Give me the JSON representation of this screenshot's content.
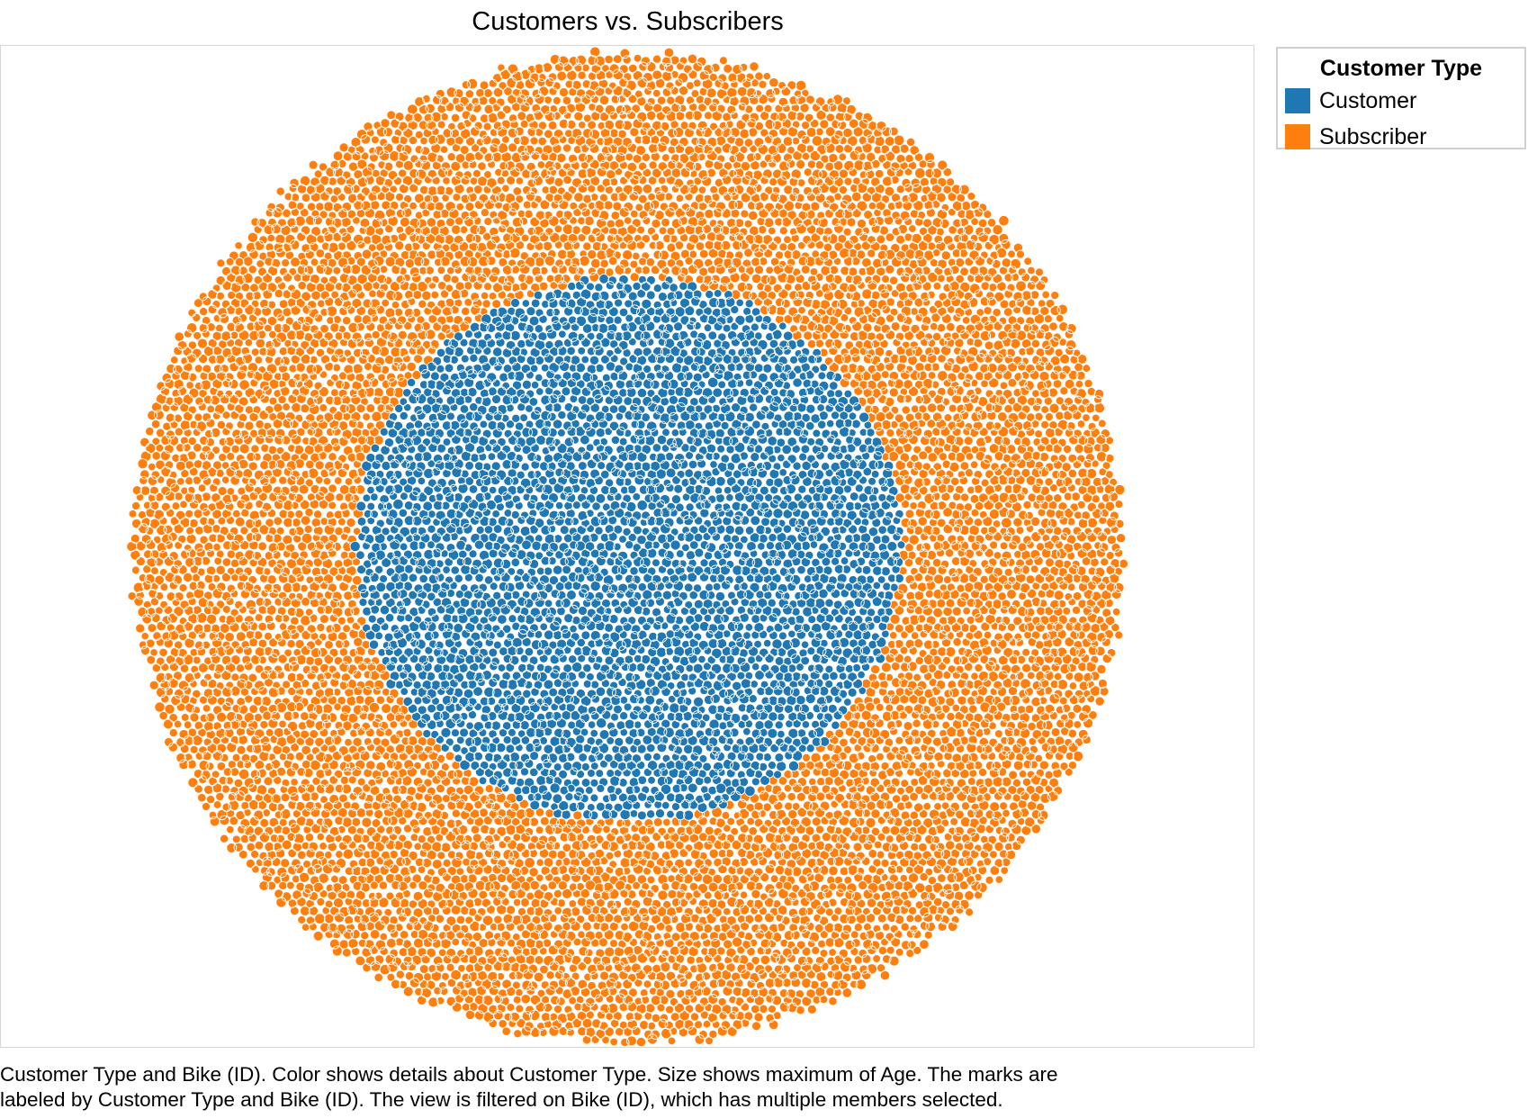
{
  "chart_data": {
    "type": "scatter",
    "layout": "packed-bubbles",
    "title": "Customers vs. Subscribers",
    "xlabel": "",
    "ylabel": "",
    "grid": false,
    "legend": {
      "title": "Customer Type",
      "placement": "right-top"
    },
    "series": [
      {
        "name": "Customer",
        "color": "#1f77b4",
        "region": "inner-disc"
      },
      {
        "name": "Subscriber",
        "color": "#ff7f0e",
        "region": "outer-ring"
      }
    ],
    "caption_lines": [
      "Customer Type and Bike (ID).  Color shows details about Customer Type.  Size shows maximum of Age.  The marks are",
      "labeled by Customer Type and Bike (ID). The view is filtered on Bike (ID), which has multiple members selected."
    ]
  }
}
